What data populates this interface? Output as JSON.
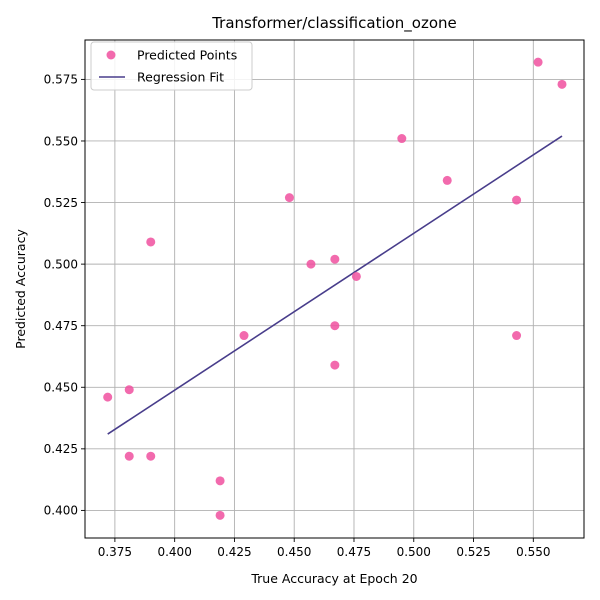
{
  "chart_data": {
    "type": "scatter",
    "title": "Transformer/classification_ozone",
    "xlabel": "True Accuracy at Epoch 20",
    "ylabel": "Predicted Accuracy",
    "xlim": [
      0.3625,
      0.5712
    ],
    "ylim": [
      0.3888,
      0.591
    ],
    "xticks": [
      0.375,
      0.4,
      0.425,
      0.45,
      0.475,
      0.5,
      0.525,
      0.55
    ],
    "xtick_labels": [
      "0.375",
      "0.400",
      "0.425",
      "0.450",
      "0.475",
      "0.500",
      "0.525",
      "0.550"
    ],
    "yticks": [
      0.4,
      0.425,
      0.45,
      0.475,
      0.5,
      0.525,
      0.55,
      0.575
    ],
    "ytick_labels": [
      "0.400",
      "0.425",
      "0.450",
      "0.475",
      "0.500",
      "0.525",
      "0.550",
      "0.575"
    ],
    "grid": true,
    "legend": "top-left",
    "series": [
      {
        "name": "Predicted Points",
        "kind": "scatter",
        "color": "#f0509f",
        "points": [
          {
            "x": 0.372,
            "y": 0.446
          },
          {
            "x": 0.381,
            "y": 0.449
          },
          {
            "x": 0.381,
            "y": 0.422
          },
          {
            "x": 0.39,
            "y": 0.509
          },
          {
            "x": 0.39,
            "y": 0.422
          },
          {
            "x": 0.419,
            "y": 0.412
          },
          {
            "x": 0.419,
            "y": 0.398
          },
          {
            "x": 0.429,
            "y": 0.471
          },
          {
            "x": 0.448,
            "y": 0.527
          },
          {
            "x": 0.457,
            "y": 0.5
          },
          {
            "x": 0.467,
            "y": 0.502
          },
          {
            "x": 0.467,
            "y": 0.475
          },
          {
            "x": 0.467,
            "y": 0.459
          },
          {
            "x": 0.476,
            "y": 0.495
          },
          {
            "x": 0.495,
            "y": 0.551
          },
          {
            "x": 0.514,
            "y": 0.534
          },
          {
            "x": 0.543,
            "y": 0.526
          },
          {
            "x": 0.543,
            "y": 0.471
          },
          {
            "x": 0.552,
            "y": 0.582
          },
          {
            "x": 0.562,
            "y": 0.573
          }
        ]
      },
      {
        "name": "Regression Fit",
        "kind": "line",
        "color": "#483d8b",
        "points": [
          {
            "x": 0.372,
            "y": 0.431
          },
          {
            "x": 0.562,
            "y": 0.552
          }
        ]
      }
    ]
  }
}
